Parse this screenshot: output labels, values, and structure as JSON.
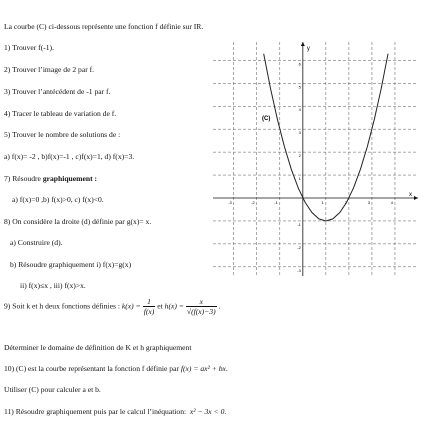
{
  "intro": "La courbe (C) ci-dessous représente une fonction f définie sur IR.",
  "questions": [
    "1) Trouver f(-1).",
    "2) Trouver l’image de 2 par f.",
    "3) Trouver l’antécédent de -1 par f.",
    "4) Tracer le tableau de variation de f.",
    "5) Trouver le nombre de solutions de :",
    "a) f(x)= -2 , b)f(x)=-1 ,  c)f(x)=1,   d) f(x)=3."
  ],
  "q7": {
    "label": "7) Résoudre",
    "bold": "graphiquement :"
  },
  "q7_items": "a) f(x)=0    ,b) f(x)>0, c) f(x)<0.",
  "q8": [
    "8) On considère la droite  (d) définie par g(x)= x.",
    "a) Construire (d).",
    "b) Résoudre graphiquement i) f(x)=g(x)",
    "ii) f(x)≤x      ,  iii) f(x)>x."
  ],
  "q9": {
    "text": "9) Soit k et h deux fonctions définies :",
    "k_lhs": "k(x) =",
    "k_num": "1",
    "k_den": "f(x)",
    "and": "et",
    "h_lhs": "h(x) =",
    "h_num": "x",
    "h_den": "√(f(x)−3)",
    "end": "."
  },
  "q9b": "Déterminer  le domaine de définition de K et h graphiquement",
  "q10": {
    "text": "10) (C) est la courbe représentant la fonction f définie par",
    "formula": "f(x) = ax² + bx",
    "end": "."
  },
  "q10b": "Utiliser (C) pour calculer a et b.",
  "q11": {
    "text": "11) Résoudre graphiquement puis par le calcul l’inéquation:",
    "formula": "x² − 3x < 0",
    "end": "."
  },
  "chart_data": {
    "type": "line",
    "curve_label": "(C)",
    "x_label": "x",
    "y_label": "y",
    "x": [
      -1.7,
      -1.4,
      -1.1,
      -0.8,
      -0.5,
      -0.2,
      0.1,
      0.4,
      0.7,
      1.0,
      1.3,
      1.6,
      1.9,
      2.2,
      2.5,
      2.8,
      3.1,
      3.4,
      3.7
    ],
    "values": [
      6.29,
      4.76,
      3.41,
      2.24,
      1.25,
      0.44,
      -0.19,
      -0.64,
      -0.91,
      -1,
      -0.91,
      -0.64,
      -0.19,
      0.44,
      1.25,
      2.24,
      3.41,
      4.76,
      6.29
    ],
    "color": "#222222",
    "xlim": [
      -3.9,
      5
    ],
    "ylim": [
      -3.4,
      6.8
    ],
    "xticks": [
      -4,
      -3,
      -2,
      -1,
      1,
      2,
      3,
      4
    ],
    "yticks": [
      -3,
      -2,
      -1,
      1,
      2,
      3,
      4,
      5,
      6
    ],
    "grid": true
  }
}
